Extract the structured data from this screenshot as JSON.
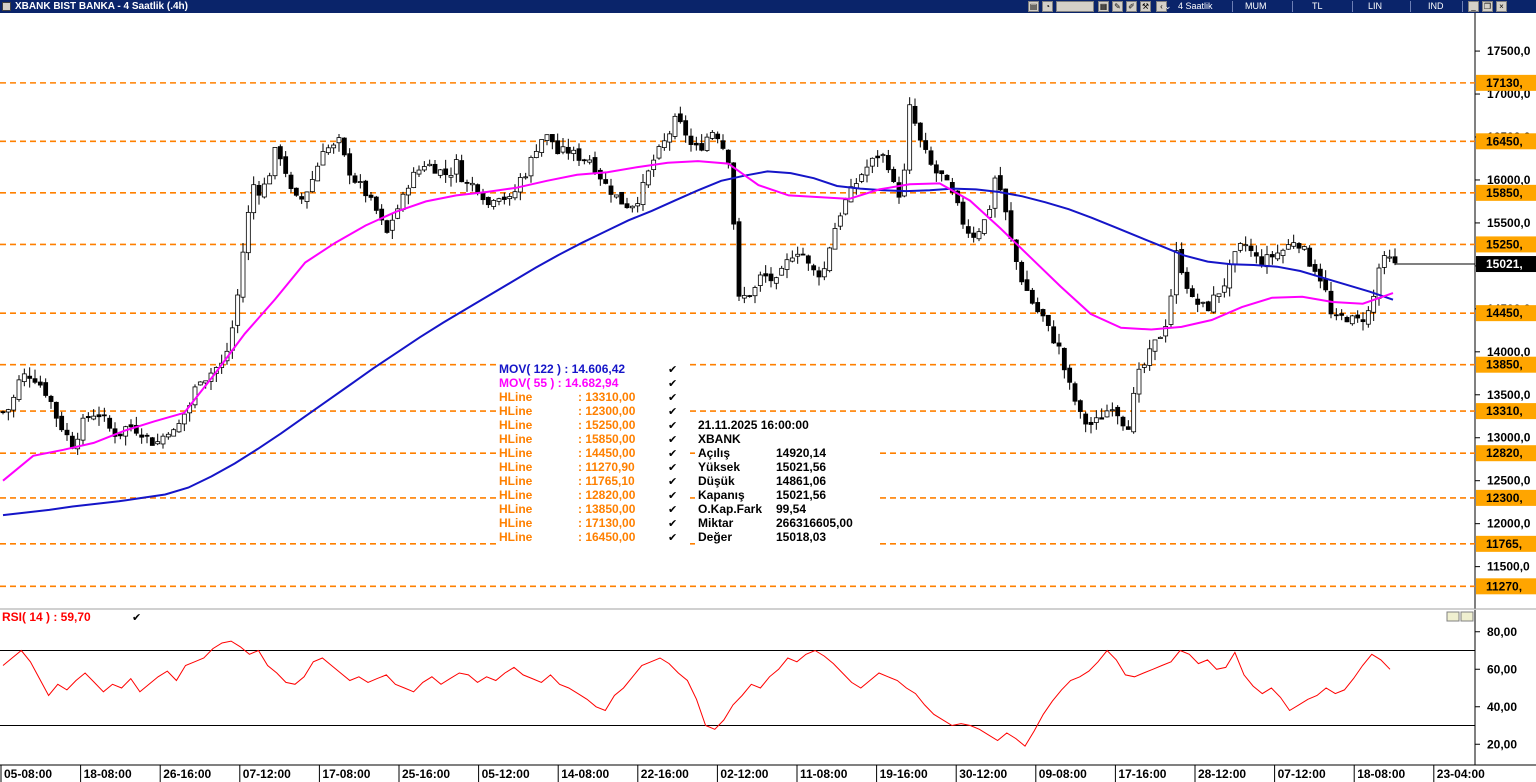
{
  "window": {
    "title": "XBANK BIST BANKA - 4 Saatlik (.4h)",
    "period_label": "4 Saatlik",
    "chart_style_label": "MUM",
    "currency_label": "TL",
    "scale_label": "LIN",
    "indicators_label": "IND"
  },
  "legend": {
    "mov122": "MOV( 122 ) : 14.606,42",
    "mov55": "MOV( 55 )  : 14.682,94",
    "hlines": [
      {
        "label": "HLine",
        "value": ": 13310,00"
      },
      {
        "label": "HLine",
        "value": ": 12300,00"
      },
      {
        "label": "HLine",
        "value": ": 15250,00"
      },
      {
        "label": "HLine",
        "value": ": 15850,00"
      },
      {
        "label": "HLine",
        "value": ": 14450,00"
      },
      {
        "label": "HLine",
        "value": ": 11270,90"
      },
      {
        "label": "HLine",
        "value": ": 11765,10"
      },
      {
        "label": "HLine",
        "value": ": 12820,00"
      },
      {
        "label": "HLine",
        "value": ": 13850,00"
      },
      {
        "label": "HLine",
        "value": ": 17130,00"
      },
      {
        "label": "HLine",
        "value": ": 16450,00"
      }
    ]
  },
  "info_box": {
    "datetime": "21.11.2025  16:00:00",
    "symbol": "XBANK",
    "rows": [
      {
        "label": "Açılış",
        "value": "14920,14"
      },
      {
        "label": "Yüksek",
        "value": "15021,56"
      },
      {
        "label": "Düşük",
        "value": "14861,06"
      },
      {
        "label": "Kapanış",
        "value": "15021,56"
      },
      {
        "label": "O.Kap.Fark",
        "value": "99,54"
      },
      {
        "label": "Miktar",
        "value": "266316605,00"
      },
      {
        "label": "Değer",
        "value": "15018,03"
      }
    ]
  },
  "rsi_panel": {
    "label": "RSI( 14 )   : 59,70"
  },
  "colors": {
    "mov122": "#1515c8",
    "mov55": "#ff00ff",
    "hline": "#ff8000",
    "rsi": "#ff0000",
    "price_tag_bg": "#000000",
    "hline_tag_bg": "#ffa500"
  },
  "chart_data": [
    {
      "type": "candlestick",
      "x_labels": [
        "05-08:00",
        "18-08:00",
        "26-16:00",
        "07-12:00",
        "17-08:00",
        "25-16:00",
        "05-12:00",
        "14-08:00",
        "22-16:00",
        "02-12:00",
        "11-08:00",
        "19-16:00",
        "30-12:00",
        "09-08:00",
        "17-16:00",
        "28-12:00",
        "07-12:00",
        "18-08:00",
        "23-04:00"
      ],
      "y_ticks": [
        "17500,0",
        "17000,0",
        "16500,0",
        "16000,0",
        "15500,0",
        "15000,0",
        "14500,0",
        "14000,0",
        "13500,0",
        "13000,0",
        "12500,0",
        "12000,0",
        "11500,0"
      ],
      "ylim": [
        11100,
        17850
      ],
      "last_price": {
        "value": 15021.56,
        "label": "15021,"
      },
      "hlines": [
        {
          "value": 17130,
          "label": "17130,"
        },
        {
          "value": 16450,
          "label": "16450,"
        },
        {
          "value": 15850,
          "label": "15850,"
        },
        {
          "value": 15250,
          "label": "15250,"
        },
        {
          "value": 14450,
          "label": "14450,"
        },
        {
          "value": 13850,
          "label": "13850,"
        },
        {
          "value": 13310,
          "label": "13310,"
        },
        {
          "value": 12820,
          "label": "12820,"
        },
        {
          "value": 12300,
          "label": "12300,"
        },
        {
          "value": 11765.1,
          "label": "11765,"
        },
        {
          "value": 11270.9,
          "label": "11270,"
        }
      ],
      "close_path": [
        13300,
        13350,
        13650,
        13750,
        13700,
        13600,
        13450,
        13200,
        13050,
        12900,
        13150,
        13250,
        13300,
        13200,
        13050,
        13050,
        13150,
        13100,
        13050,
        12950,
        12950,
        13100,
        13050,
        13250,
        13400,
        13700,
        13700,
        13800,
        13850,
        14100,
        14650,
        15400,
        15950,
        15850,
        16050,
        16400,
        16150,
        15800,
        15750,
        15900,
        16100,
        16400,
        16350,
        16450,
        16150,
        16000,
        15900,
        15750,
        15600,
        15350,
        15600,
        15750,
        16000,
        16100,
        16200,
        16150,
        16100,
        16050,
        16200,
        15950,
        15950,
        15900,
        15700,
        15850,
        15800,
        15750,
        16000,
        16100,
        16350,
        16500,
        16500,
        16300,
        16350,
        16300,
        16250,
        16250,
        16100,
        15950,
        15850,
        15750,
        15700,
        15750,
        15950,
        16200,
        16350,
        16500,
        16700,
        16600,
        16400,
        16350,
        16500,
        16600,
        16400,
        16200,
        14600,
        14650,
        14700,
        14900,
        14850,
        14800,
        15000,
        15150,
        15200,
        15000,
        14900,
        14950,
        15350,
        15600,
        15800,
        15950,
        16100,
        16200,
        16300,
        16250,
        15900,
        15800,
        16900,
        16500,
        16300,
        16100,
        16050,
        15900,
        15700,
        15450,
        15350,
        15450,
        15600,
        16100,
        15700,
        15250,
        14900,
        14700,
        14500,
        14400,
        14200,
        14050,
        13700,
        13450,
        13200,
        13150,
        13200,
        13300,
        13400,
        13200,
        13150,
        13700,
        13850,
        14050,
        14200,
        14400,
        15150,
        14900,
        14600,
        14550,
        14500,
        14650,
        14750,
        15000,
        15200,
        15250,
        15100,
        15050,
        15100,
        15150,
        15200,
        15300,
        15250,
        15050,
        14950,
        14750,
        14350,
        14400,
        14400,
        14350,
        14400,
        14500,
        15000,
        15100,
        15000
      ],
      "mov122_path": [
        12100,
        12130,
        12160,
        12200,
        12230,
        12260,
        12300,
        12340,
        12420,
        12550,
        12700,
        12870,
        13050,
        13240,
        13430,
        13620,
        13810,
        13990,
        14170,
        14340,
        14500,
        14660,
        14820,
        14980,
        15130,
        15270,
        15400,
        15530,
        15640,
        15760,
        15880,
        15990,
        16050,
        16100,
        16080,
        16020,
        15930,
        15900,
        15880,
        15870,
        15880,
        15900,
        15890,
        15860,
        15810,
        15740,
        15660,
        15560,
        15450,
        15340,
        15230,
        15120,
        15050,
        15020,
        15010,
        14990,
        14940,
        14860,
        14780,
        14700,
        14606
      ],
      "mov55_path": [
        12500,
        12790,
        12860,
        12940,
        13080,
        13190,
        13290,
        13740,
        14210,
        14610,
        15040,
        15270,
        15470,
        15630,
        15750,
        15820,
        15860,
        15910,
        15990,
        16060,
        16090,
        16150,
        16200,
        16220,
        16190,
        15940,
        15820,
        15800,
        15780,
        15890,
        15950,
        15960,
        15760,
        15440,
        15100,
        14760,
        14440,
        14280,
        14260,
        14290,
        14370,
        14520,
        14630,
        14640,
        14580,
        14560,
        14683
      ]
    },
    {
      "type": "line",
      "title": "RSI( 14 )",
      "y_ticks": [
        "80,00",
        "60,00",
        "40,00",
        "20,00"
      ],
      "ylim": [
        10,
        90
      ],
      "reference_lines": [
        70,
        30
      ],
      "values": [
        62,
        66,
        70,
        64,
        55,
        46,
        52,
        49,
        54,
        58,
        53,
        48,
        52,
        50,
        55,
        48,
        52,
        56,
        59,
        54,
        62,
        64,
        66,
        71,
        74,
        75,
        72,
        68,
        70,
        62,
        58,
        53,
        52,
        56,
        64,
        66,
        62,
        58,
        54,
        56,
        53,
        55,
        57,
        52,
        50,
        48,
        53,
        56,
        52,
        55,
        58,
        57,
        53,
        56,
        54,
        58,
        61,
        57,
        55,
        53,
        57,
        52,
        50,
        47,
        44,
        40,
        38,
        46,
        50,
        56,
        62,
        64,
        66,
        63,
        58,
        54,
        44,
        30,
        28,
        33,
        41,
        46,
        52,
        50,
        56,
        60,
        66,
        64,
        68,
        70,
        67,
        63,
        58,
        53,
        50,
        54,
        58,
        56,
        54,
        50,
        47,
        41,
        36,
        33,
        30,
        31,
        30,
        28,
        25,
        22,
        26,
        23,
        19,
        27,
        36,
        43,
        49,
        54,
        56,
        59,
        64,
        70,
        65,
        57,
        56,
        58,
        60,
        62,
        64,
        70,
        68,
        63,
        65,
        60,
        61,
        69,
        57,
        51,
        47,
        50,
        45,
        38,
        41,
        44,
        46,
        50,
        47,
        49,
        55,
        62,
        68,
        65,
        60
      ],
      "last_value": 59.7
    }
  ]
}
